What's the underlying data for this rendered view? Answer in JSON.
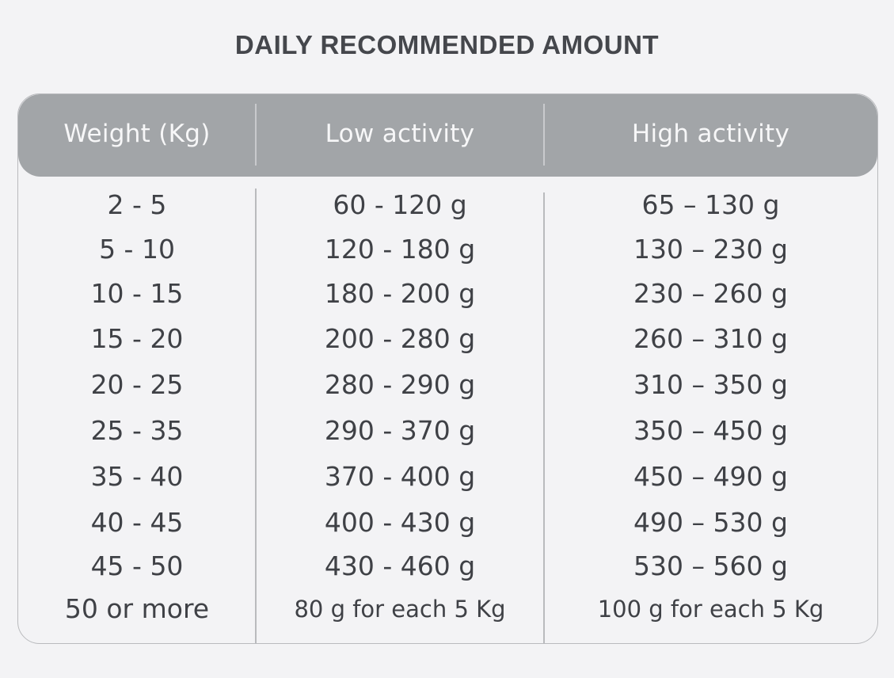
{
  "title": "DAILY RECOMMENDED AMOUNT",
  "table": {
    "headers": [
      "Weight (Kg)",
      "Low activity",
      "High activity"
    ],
    "rows": [
      [
        "2 - 5",
        "60 - 120 g",
        "65 – 130 g"
      ],
      [
        "5 - 10",
        "120 - 180 g",
        "130 – 230 g"
      ],
      [
        "10 - 15",
        "180 - 200 g",
        "230 – 260 g"
      ],
      [
        "15 - 20",
        "200 - 280 g",
        "260 – 310 g"
      ],
      [
        "20 - 25",
        "280 - 290 g",
        "310 – 350 g"
      ],
      [
        "25 - 35",
        "290 - 370 g",
        "350 – 450 g"
      ],
      [
        "35 - 40",
        "370 - 400 g",
        "450 – 490 g"
      ],
      [
        "40 - 45",
        "400 - 430 g",
        "490 – 530 g"
      ],
      [
        "45 - 50",
        "430 - 460 g",
        "530 – 560 g"
      ],
      [
        "50 or more",
        "80 g for each 5 Kg",
        "100 g for each 5 Kg"
      ]
    ]
  },
  "colors": {
    "background": "#f3f3f5",
    "header_fill": "#a2a5a8",
    "text": "#3f4146",
    "border": "#b9babd"
  }
}
